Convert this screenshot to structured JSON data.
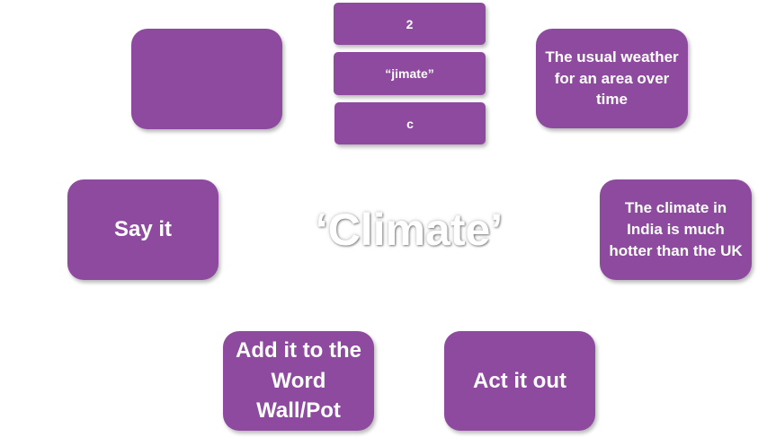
{
  "center_word": "‘Climate’",
  "boxes": {
    "empty": "",
    "syllables": "2",
    "pronunciation": "“jimate”",
    "first_letter": "c",
    "definition": "The usual weather for an area over time",
    "say_it": "Say it",
    "sentence": "The climate in India is much hotter than the UK",
    "add_to_wall": "Add it to the Word Wall/Pot",
    "act_it_out": "Act it out"
  },
  "colors": {
    "box_fill": "#8e4a9f",
    "box_text": "#ffffff",
    "background": "#ffffff"
  }
}
